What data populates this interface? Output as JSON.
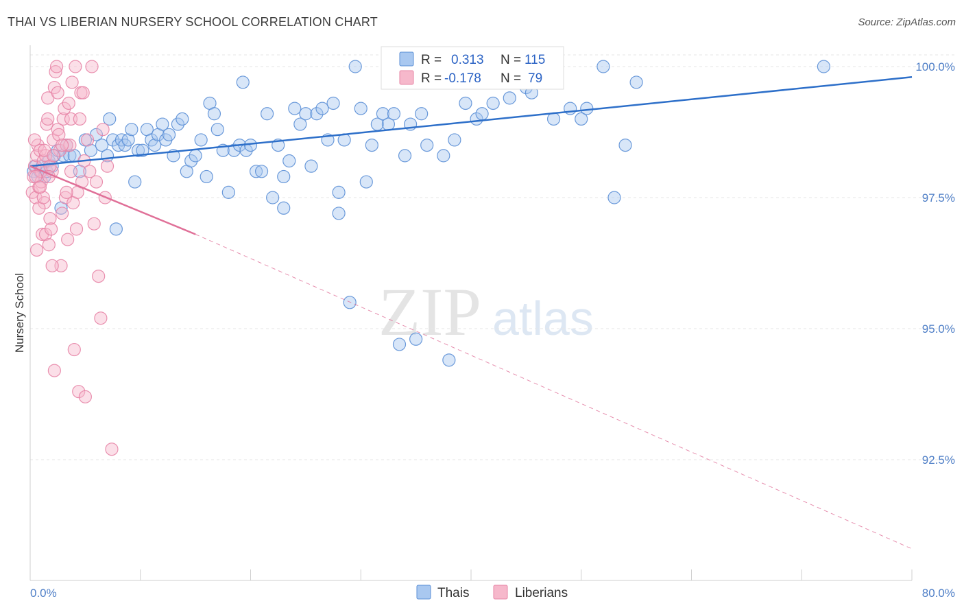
{
  "header": {
    "title": "THAI VS LIBERIAN NURSERY SCHOOL CORRELATION CHART",
    "source": "Source: ZipAtlas.com"
  },
  "colors": {
    "thai_fill": "#a9c8f0",
    "thai_stroke": "#5b8fd6",
    "thai_line": "#2d6fc9",
    "liberian_fill": "#f6b8cb",
    "liberian_stroke": "#e784a6",
    "liberian_line": "#e07098",
    "grid": "#e6e6e6",
    "tick_text": "#4f7fc7"
  },
  "watermark": {
    "zip": "ZIP",
    "atlas": "atlas"
  },
  "legend": {
    "r_label": "R =",
    "n_label": "N =",
    "thai": {
      "r": "0.313",
      "n": "115"
    },
    "liberian": {
      "r": "-0.178",
      "n": "79"
    }
  },
  "bottom_legend": {
    "thai": "Thais",
    "liberian": "Liberians"
  },
  "chart_data": {
    "type": "scatter",
    "title": "THAI VS LIBERIAN NURSERY SCHOOL CORRELATION CHART",
    "xlabel": "",
    "ylabel": "Nursery School",
    "xlim": [
      0,
      80
    ],
    "ylim": [
      90.5,
      100.4
    ],
    "x_tick_labels": [
      "0.0%",
      "80.0%"
    ],
    "y_ticks": [
      92.5,
      95.0,
      97.5,
      100.0
    ],
    "y_tick_labels": [
      "92.5%",
      "95.0%",
      "97.5%",
      "100.0%"
    ],
    "series": [
      {
        "name": "Thais",
        "trend": {
          "x": [
            0,
            80
          ],
          "y": [
            98.1,
            99.8
          ],
          "style": "solid"
        },
        "points": [
          [
            0.3,
            98.0
          ],
          [
            0.5,
            98.1
          ],
          [
            0.7,
            97.9
          ],
          [
            0.9,
            98.0
          ],
          [
            1.1,
            98.1
          ],
          [
            1.3,
            97.9
          ],
          [
            1.5,
            98.0
          ],
          [
            1.7,
            98.2
          ],
          [
            2.0,
            98.1
          ],
          [
            2.2,
            98.3
          ],
          [
            2.5,
            98.4
          ],
          [
            2.8,
            97.3
          ],
          [
            3.0,
            98.3
          ],
          [
            3.3,
            98.5
          ],
          [
            3.6,
            98.3
          ],
          [
            4.0,
            98.3
          ],
          [
            4.5,
            98.0
          ],
          [
            5.0,
            98.6
          ],
          [
            5.5,
            98.4
          ],
          [
            6.0,
            98.7
          ],
          [
            6.5,
            98.5
          ],
          [
            7.0,
            98.3
          ],
          [
            7.2,
            99.0
          ],
          [
            7.5,
            98.6
          ],
          [
            7.8,
            96.9
          ],
          [
            8.0,
            98.5
          ],
          [
            8.3,
            98.6
          ],
          [
            8.6,
            98.5
          ],
          [
            8.9,
            98.6
          ],
          [
            9.2,
            98.8
          ],
          [
            9.5,
            97.8
          ],
          [
            9.8,
            98.4
          ],
          [
            10.2,
            98.4
          ],
          [
            10.6,
            98.8
          ],
          [
            11.0,
            98.6
          ],
          [
            11.3,
            98.5
          ],
          [
            11.6,
            98.7
          ],
          [
            12.0,
            98.9
          ],
          [
            12.3,
            98.6
          ],
          [
            12.6,
            98.7
          ],
          [
            13.0,
            98.3
          ],
          [
            13.4,
            98.9
          ],
          [
            13.8,
            99.0
          ],
          [
            14.2,
            98.0
          ],
          [
            14.6,
            98.2
          ],
          [
            15.0,
            98.3
          ],
          [
            15.5,
            98.6
          ],
          [
            16.0,
            97.9
          ],
          [
            16.3,
            99.3
          ],
          [
            16.7,
            99.1
          ],
          [
            17.0,
            98.8
          ],
          [
            17.5,
            98.4
          ],
          [
            18.0,
            97.6
          ],
          [
            18.5,
            98.4
          ],
          [
            19.0,
            98.5
          ],
          [
            19.3,
            99.7
          ],
          [
            19.6,
            98.4
          ],
          [
            20.0,
            98.5
          ],
          [
            20.5,
            98.0
          ],
          [
            21.0,
            98.0
          ],
          [
            21.5,
            99.1
          ],
          [
            22.0,
            97.5
          ],
          [
            22.5,
            98.5
          ],
          [
            23.0,
            97.9
          ],
          [
            23.5,
            98.2
          ],
          [
            24.0,
            99.2
          ],
          [
            24.5,
            98.9
          ],
          [
            25.0,
            99.1
          ],
          [
            25.5,
            98.1
          ],
          [
            26.0,
            99.1
          ],
          [
            26.5,
            99.2
          ],
          [
            27.0,
            98.6
          ],
          [
            27.5,
            99.3
          ],
          [
            28.0,
            97.6
          ],
          [
            28.5,
            98.6
          ],
          [
            29.0,
            95.5
          ],
          [
            29.5,
            100.0
          ],
          [
            30.0,
            99.2
          ],
          [
            30.5,
            97.8
          ],
          [
            31.0,
            98.5
          ],
          [
            31.5,
            98.9
          ],
          [
            32.0,
            99.1
          ],
          [
            32.5,
            98.9
          ],
          [
            33.0,
            99.1
          ],
          [
            33.5,
            94.7
          ],
          [
            34.0,
            98.3
          ],
          [
            34.5,
            98.9
          ],
          [
            35.0,
            94.8
          ],
          [
            35.5,
            99.1
          ],
          [
            36.0,
            98.5
          ],
          [
            36.5,
            100.0
          ],
          [
            37.5,
            98.3
          ],
          [
            38.0,
            94.4
          ],
          [
            38.5,
            98.6
          ],
          [
            39.0,
            99.9
          ],
          [
            39.5,
            99.3
          ],
          [
            40.5,
            99.0
          ],
          [
            41.0,
            99.1
          ],
          [
            42.0,
            99.3
          ],
          [
            43.5,
            99.4
          ],
          [
            45.0,
            99.6
          ],
          [
            46.5,
            99.9
          ],
          [
            47.5,
            99.0
          ],
          [
            49.0,
            99.2
          ],
          [
            50.0,
            99.0
          ],
          [
            50.5,
            99.2
          ],
          [
            52.0,
            100.0
          ],
          [
            53.0,
            97.5
          ],
          [
            54.0,
            98.5
          ],
          [
            55.0,
            99.7
          ],
          [
            28.0,
            97.2
          ],
          [
            23.0,
            97.3
          ],
          [
            37.0,
            100.0
          ],
          [
            45.5,
            99.5
          ],
          [
            72.0,
            100.0
          ]
        ]
      },
      {
        "name": "Liberians",
        "trend": {
          "x": [
            0,
            15
          ],
          "y": [
            98.1,
            96.8
          ],
          "style": "solid",
          "extension": {
            "x": [
              15,
              80
            ],
            "y": [
              96.8,
              90.8
            ],
            "style": "dashed"
          }
        },
        "points": [
          [
            0.2,
            97.6
          ],
          [
            0.3,
            97.9
          ],
          [
            0.4,
            98.1
          ],
          [
            0.5,
            97.5
          ],
          [
            0.6,
            98.3
          ],
          [
            0.7,
            98.5
          ],
          [
            0.8,
            97.7
          ],
          [
            0.9,
            98.4
          ],
          [
            1.0,
            97.8
          ],
          [
            1.1,
            96.8
          ],
          [
            1.2,
            98.2
          ],
          [
            1.3,
            97.4
          ],
          [
            1.4,
            96.8
          ],
          [
            1.5,
            98.9
          ],
          [
            1.6,
            99.4
          ],
          [
            1.7,
            96.6
          ],
          [
            1.8,
            97.1
          ],
          [
            1.9,
            96.9
          ],
          [
            2.0,
            98.0
          ],
          [
            2.1,
            98.6
          ],
          [
            2.2,
            99.6
          ],
          [
            2.3,
            99.9
          ],
          [
            2.4,
            100.0
          ],
          [
            2.5,
            98.8
          ],
          [
            2.6,
            98.7
          ],
          [
            2.7,
            98.4
          ],
          [
            2.8,
            96.2
          ],
          [
            2.9,
            97.2
          ],
          [
            3.0,
            99.0
          ],
          [
            3.1,
            99.2
          ],
          [
            3.2,
            97.5
          ],
          [
            3.3,
            98.5
          ],
          [
            3.4,
            96.7
          ],
          [
            3.5,
            99.3
          ],
          [
            3.6,
            98.5
          ],
          [
            3.7,
            99.0
          ],
          [
            3.8,
            99.7
          ],
          [
            3.9,
            97.4
          ],
          [
            4.0,
            94.6
          ],
          [
            4.1,
            100.0
          ],
          [
            4.2,
            96.9
          ],
          [
            4.3,
            97.6
          ],
          [
            4.4,
            93.8
          ],
          [
            4.5,
            99.0
          ],
          [
            4.6,
            99.5
          ],
          [
            4.7,
            97.8
          ],
          [
            4.8,
            99.5
          ],
          [
            4.9,
            98.2
          ],
          [
            5.0,
            93.7
          ],
          [
            5.2,
            98.6
          ],
          [
            5.4,
            98.0
          ],
          [
            5.6,
            100.0
          ],
          [
            5.8,
            97.0
          ],
          [
            6.0,
            97.8
          ],
          [
            6.2,
            96.0
          ],
          [
            6.4,
            95.2
          ],
          [
            6.6,
            98.8
          ],
          [
            6.8,
            97.5
          ],
          [
            7.0,
            98.1
          ],
          [
            7.4,
            92.7
          ],
          [
            0.4,
            98.6
          ],
          [
            0.6,
            96.5
          ],
          [
            0.8,
            97.3
          ],
          [
            1.0,
            98.0
          ],
          [
            1.2,
            97.5
          ],
          [
            1.4,
            98.3
          ],
          [
            1.6,
            99.0
          ],
          [
            1.8,
            98.1
          ],
          [
            2.0,
            96.2
          ],
          [
            2.2,
            94.2
          ],
          [
            0.5,
            97.9
          ],
          [
            0.9,
            97.7
          ],
          [
            1.3,
            98.4
          ],
          [
            1.7,
            97.9
          ],
          [
            2.1,
            98.3
          ],
          [
            2.5,
            99.5
          ],
          [
            2.9,
            98.5
          ],
          [
            3.3,
            97.6
          ],
          [
            3.7,
            98.0
          ]
        ]
      }
    ]
  }
}
